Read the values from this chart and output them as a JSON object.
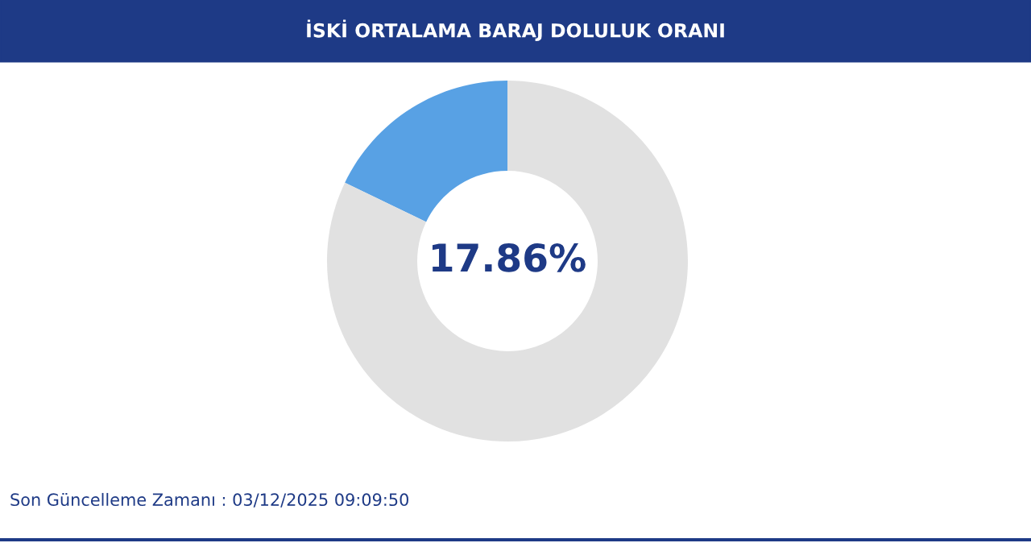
{
  "chart_data": {
    "type": "donut",
    "title": "İSKİ ORTALAMA BARAJ DOLULUK ORANI",
    "categories": [
      null,
      null
    ],
    "values": [
      17.86,
      82.14
    ],
    "colors": [
      "#58a1e4",
      "#e1e1e1"
    ],
    "annotations": [
      "17.86%",
      "Son Güncelleme Zamanı : 03/12/2025 09:09:50"
    ],
    "legend": false
  }
}
